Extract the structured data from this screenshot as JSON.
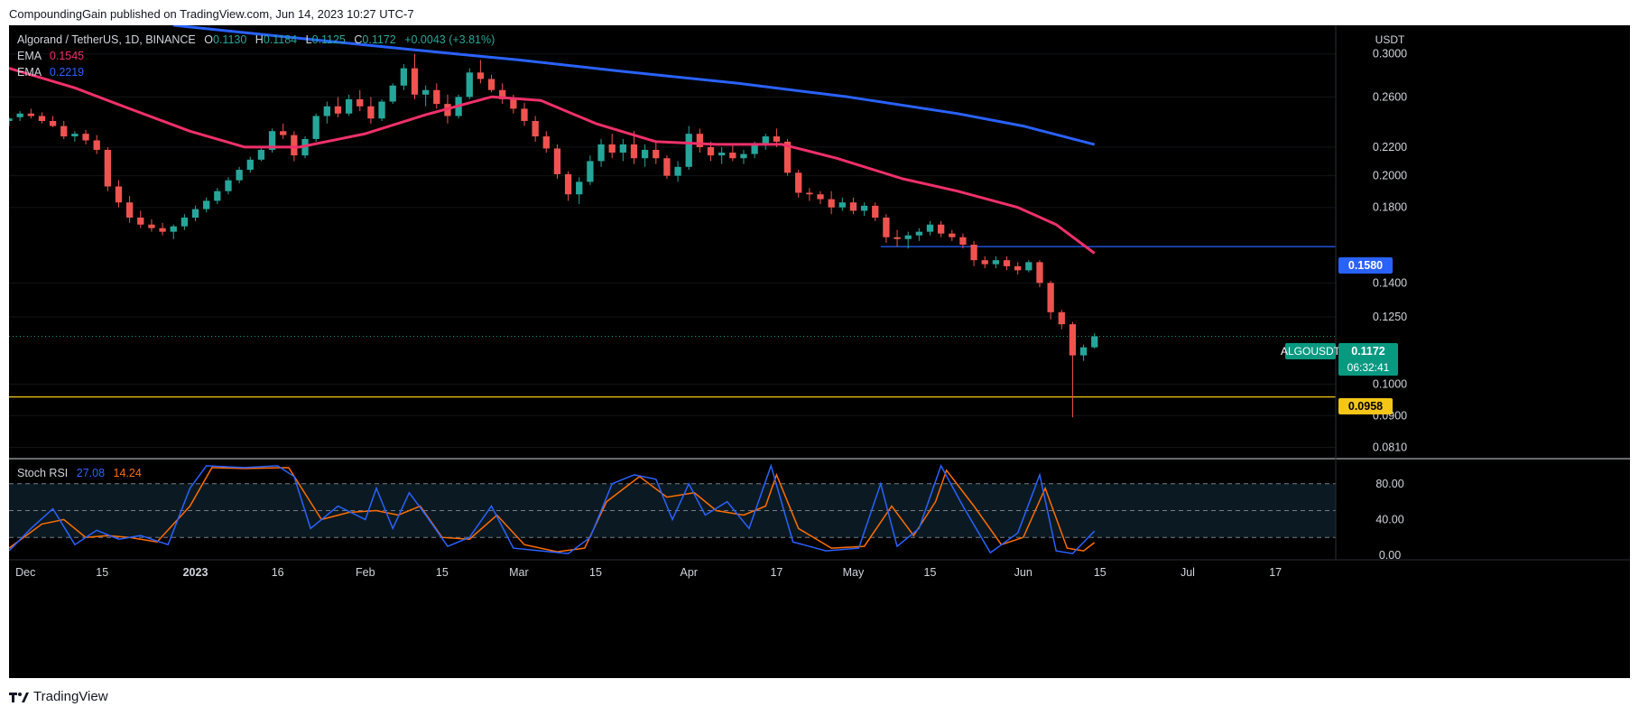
{
  "header": {
    "published_line": "CompoundingGain published on TradingView.com, Jun 14, 2023 10:27 UTC-7"
  },
  "footer": {
    "brand": "TradingView"
  },
  "symbol_bar": {
    "title": "Algorand / TetherUS, 1D, BINANCE",
    "o_label": "O",
    "o_value": "0.1130",
    "h_label": "H",
    "h_value": "0.1184",
    "l_label": "L",
    "l_value": "0.1125",
    "c_label": "C",
    "c_value": "0.1172",
    "change": "+0.0043 (+3.81%)"
  },
  "indicators": {
    "ema_fast": {
      "label": "EMA",
      "value": "0.1545",
      "color": "#f0306a"
    },
    "ema_slow": {
      "label": "EMA",
      "value": "0.2219",
      "color": "#2962ff"
    }
  },
  "price_axis": {
    "currency": "USDT",
    "ticks": [
      "0.3000",
      "0.2600",
      "0.2200",
      "0.2000",
      "0.1800",
      "0.1400",
      "0.1250",
      "0.1000",
      "0.0900",
      "0.0810"
    ]
  },
  "price_tags": {
    "symbol": "ALGOUSDT",
    "last_price": "0.1172",
    "countdown": "06:32:41",
    "resistance": "0.1580",
    "support": "0.0958"
  },
  "stoch_rsi": {
    "label": "Stoch RSI",
    "k_value": "27.08",
    "d_value": "14.24",
    "k_color": "#2962ff",
    "d_color": "#ff6d00",
    "ticks": [
      "80.00",
      "40.00",
      "0.00"
    ]
  },
  "time_axis": {
    "labels": [
      "Dec",
      "15",
      "2023",
      "16",
      "Feb",
      "15",
      "Mar",
      "15",
      "Apr",
      "17",
      "May",
      "15",
      "Jun",
      "15",
      "Jul",
      "17"
    ]
  },
  "colors": {
    "up": "#26a69a",
    "down": "#ef5350",
    "ema_fast": "#f0306a",
    "ema_slow": "#2962ff",
    "resistance_line": "#2962ff",
    "support_line": "#f5c518",
    "last_price": "#089981"
  },
  "chart_data": {
    "type": "candlestick",
    "title": "Algorand / TetherUS, 1D, BINANCE",
    "ylabel": "USDT",
    "y_scale": "log",
    "ylim": [
      0.078,
      0.33
    ],
    "x_start": "2022-11-28",
    "x_end": "2023-07-28",
    "horizontal_levels": [
      {
        "name": "resistance",
        "value": 0.158,
        "from": "2023-05-06"
      },
      {
        "name": "support",
        "value": 0.0958
      }
    ],
    "candles": [
      [
        "2022-11-28",
        0.24,
        0.243,
        0.236,
        0.242
      ],
      [
        "2022-11-30",
        0.243,
        0.248,
        0.24,
        0.246
      ],
      [
        "2022-12-02",
        0.246,
        0.25,
        0.242,
        0.244
      ],
      [
        "2022-12-04",
        0.244,
        0.247,
        0.238,
        0.24
      ],
      [
        "2022-12-06",
        0.24,
        0.244,
        0.235,
        0.236
      ],
      [
        "2022-12-08",
        0.236,
        0.24,
        0.226,
        0.228
      ],
      [
        "2022-12-10",
        0.228,
        0.232,
        0.224,
        0.23
      ],
      [
        "2022-12-12",
        0.23,
        0.233,
        0.222,
        0.225
      ],
      [
        "2022-12-14",
        0.225,
        0.229,
        0.215,
        0.218
      ],
      [
        "2022-12-16",
        0.218,
        0.22,
        0.19,
        0.193
      ],
      [
        "2022-12-18",
        0.193,
        0.197,
        0.18,
        0.183
      ],
      [
        "2022-12-20",
        0.183,
        0.187,
        0.171,
        0.174
      ],
      [
        "2022-12-22",
        0.174,
        0.178,
        0.168,
        0.17
      ],
      [
        "2022-12-24",
        0.17,
        0.173,
        0.166,
        0.168
      ],
      [
        "2022-12-26",
        0.168,
        0.171,
        0.164,
        0.166
      ],
      [
        "2022-12-28",
        0.166,
        0.17,
        0.162,
        0.169
      ],
      [
        "2022-12-30",
        0.169,
        0.176,
        0.167,
        0.174
      ],
      [
        "2023-01-01",
        0.174,
        0.181,
        0.172,
        0.179
      ],
      [
        "2023-01-03",
        0.179,
        0.186,
        0.177,
        0.184
      ],
      [
        "2023-01-05",
        0.184,
        0.192,
        0.182,
        0.19
      ],
      [
        "2023-01-07",
        0.19,
        0.199,
        0.188,
        0.197
      ],
      [
        "2023-01-09",
        0.197,
        0.206,
        0.195,
        0.204
      ],
      [
        "2023-01-11",
        0.204,
        0.213,
        0.202,
        0.211
      ],
      [
        "2023-01-13",
        0.211,
        0.22,
        0.21,
        0.218
      ],
      [
        "2023-01-15",
        0.218,
        0.234,
        0.216,
        0.232
      ],
      [
        "2023-01-17",
        0.232,
        0.238,
        0.226,
        0.229
      ],
      [
        "2023-01-19",
        0.229,
        0.232,
        0.21,
        0.214
      ],
      [
        "2023-01-21",
        0.214,
        0.228,
        0.212,
        0.226
      ],
      [
        "2023-01-23",
        0.226,
        0.246,
        0.224,
        0.244
      ],
      [
        "2023-01-25",
        0.244,
        0.256,
        0.238,
        0.252
      ],
      [
        "2023-01-27",
        0.252,
        0.26,
        0.243,
        0.246
      ],
      [
        "2023-01-29",
        0.246,
        0.262,
        0.244,
        0.258
      ],
      [
        "2023-01-31",
        0.258,
        0.266,
        0.248,
        0.252
      ],
      [
        "2023-02-02",
        0.252,
        0.26,
        0.238,
        0.242
      ],
      [
        "2023-02-04",
        0.242,
        0.258,
        0.24,
        0.256
      ],
      [
        "2023-02-06",
        0.256,
        0.272,
        0.254,
        0.27
      ],
      [
        "2023-02-08",
        0.27,
        0.29,
        0.266,
        0.286
      ],
      [
        "2023-02-10",
        0.286,
        0.3,
        0.258,
        0.262
      ],
      [
        "2023-02-12",
        0.262,
        0.27,
        0.252,
        0.266
      ],
      [
        "2023-02-14",
        0.266,
        0.272,
        0.25,
        0.254
      ],
      [
        "2023-02-16",
        0.254,
        0.262,
        0.238,
        0.244
      ],
      [
        "2023-02-18",
        0.244,
        0.262,
        0.242,
        0.26
      ],
      [
        "2023-02-20",
        0.26,
        0.286,
        0.258,
        0.282
      ],
      [
        "2023-02-22",
        0.282,
        0.294,
        0.272,
        0.276
      ],
      [
        "2023-02-24",
        0.276,
        0.28,
        0.264,
        0.266
      ],
      [
        "2023-02-26",
        0.266,
        0.272,
        0.254,
        0.258
      ],
      [
        "2023-02-28",
        0.258,
        0.262,
        0.246,
        0.25
      ],
      [
        "2023-03-02",
        0.25,
        0.255,
        0.236,
        0.24
      ],
      [
        "2023-03-04",
        0.24,
        0.244,
        0.224,
        0.228
      ],
      [
        "2023-03-06",
        0.228,
        0.232,
        0.216,
        0.219
      ],
      [
        "2023-03-08",
        0.219,
        0.222,
        0.198,
        0.201
      ],
      [
        "2023-03-10",
        0.201,
        0.203,
        0.184,
        0.188
      ],
      [
        "2023-03-12",
        0.188,
        0.199,
        0.182,
        0.196
      ],
      [
        "2023-03-14",
        0.196,
        0.214,
        0.194,
        0.21
      ],
      [
        "2023-03-16",
        0.21,
        0.226,
        0.206,
        0.222
      ],
      [
        "2023-03-18",
        0.222,
        0.23,
        0.212,
        0.216
      ],
      [
        "2023-03-20",
        0.216,
        0.226,
        0.21,
        0.222
      ],
      [
        "2023-03-22",
        0.222,
        0.232,
        0.208,
        0.212
      ],
      [
        "2023-03-24",
        0.212,
        0.222,
        0.206,
        0.218
      ],
      [
        "2023-03-26",
        0.218,
        0.224,
        0.208,
        0.212
      ],
      [
        "2023-03-28",
        0.212,
        0.214,
        0.198,
        0.2
      ],
      [
        "2023-03-30",
        0.2,
        0.21,
        0.196,
        0.206
      ],
      [
        "2023-04-01",
        0.206,
        0.236,
        0.204,
        0.23
      ],
      [
        "2023-04-03",
        0.23,
        0.234,
        0.216,
        0.22
      ],
      [
        "2023-04-05",
        0.22,
        0.224,
        0.21,
        0.214
      ],
      [
        "2023-04-07",
        0.214,
        0.22,
        0.208,
        0.216
      ],
      [
        "2023-04-09",
        0.216,
        0.222,
        0.21,
        0.212
      ],
      [
        "2023-04-11",
        0.212,
        0.218,
        0.208,
        0.215
      ],
      [
        "2023-04-13",
        0.215,
        0.224,
        0.212,
        0.222
      ],
      [
        "2023-04-15",
        0.222,
        0.23,
        0.218,
        0.228
      ],
      [
        "2023-04-17",
        0.228,
        0.234,
        0.22,
        0.224
      ],
      [
        "2023-04-19",
        0.224,
        0.226,
        0.2,
        0.202
      ],
      [
        "2023-04-21",
        0.202,
        0.204,
        0.186,
        0.189
      ],
      [
        "2023-04-23",
        0.189,
        0.192,
        0.184,
        0.188
      ],
      [
        "2023-04-25",
        0.188,
        0.19,
        0.182,
        0.185
      ],
      [
        "2023-04-27",
        0.185,
        0.19,
        0.176,
        0.18
      ],
      [
        "2023-04-29",
        0.18,
        0.186,
        0.178,
        0.183
      ],
      [
        "2023-05-01",
        0.183,
        0.186,
        0.176,
        0.178
      ],
      [
        "2023-05-03",
        0.178,
        0.183,
        0.175,
        0.181
      ],
      [
        "2023-05-05",
        0.181,
        0.183,
        0.172,
        0.174
      ],
      [
        "2023-05-07",
        0.174,
        0.176,
        0.16,
        0.163
      ],
      [
        "2023-05-09",
        0.163,
        0.167,
        0.158,
        0.162
      ],
      [
        "2023-05-11",
        0.162,
        0.166,
        0.157,
        0.164
      ],
      [
        "2023-05-13",
        0.164,
        0.168,
        0.161,
        0.166
      ],
      [
        "2023-05-15",
        0.166,
        0.172,
        0.164,
        0.17
      ],
      [
        "2023-05-17",
        0.17,
        0.172,
        0.163,
        0.165
      ],
      [
        "2023-05-19",
        0.165,
        0.167,
        0.161,
        0.163
      ],
      [
        "2023-05-21",
        0.163,
        0.165,
        0.157,
        0.159
      ],
      [
        "2023-05-23",
        0.159,
        0.161,
        0.148,
        0.151
      ],
      [
        "2023-05-25",
        0.151,
        0.153,
        0.147,
        0.149
      ],
      [
        "2023-05-27",
        0.149,
        0.153,
        0.147,
        0.151
      ],
      [
        "2023-05-29",
        0.151,
        0.153,
        0.146,
        0.148
      ],
      [
        "2023-05-31",
        0.148,
        0.15,
        0.144,
        0.146
      ],
      [
        "2023-06-02",
        0.146,
        0.151,
        0.145,
        0.15
      ],
      [
        "2023-06-04",
        0.15,
        0.151,
        0.138,
        0.14
      ],
      [
        "2023-06-06",
        0.14,
        0.141,
        0.124,
        0.127
      ],
      [
        "2023-06-08",
        0.127,
        0.128,
        0.12,
        0.122
      ],
      [
        "2023-06-10",
        0.122,
        0.123,
        0.0895,
        0.11
      ],
      [
        "2023-06-12",
        0.11,
        0.114,
        0.108,
        0.113
      ],
      [
        "2023-06-14",
        0.113,
        0.1184,
        0.1125,
        0.1172
      ]
    ],
    "ema_fast": {
      "name": "EMA",
      "last_value": 0.1545,
      "points": [
        [
          "2022-11-28",
          0.286
        ],
        [
          "2022-12-10",
          0.268
        ],
        [
          "2022-12-20",
          0.25
        ],
        [
          "2022-12-31",
          0.232
        ],
        [
          "2023-01-10",
          0.22
        ],
        [
          "2023-01-20",
          0.22
        ],
        [
          "2023-02-01",
          0.23
        ],
        [
          "2023-02-12",
          0.245
        ],
        [
          "2023-02-24",
          0.26
        ],
        [
          "2023-03-05",
          0.257
        ],
        [
          "2023-03-15",
          0.238
        ],
        [
          "2023-03-26",
          0.224
        ],
        [
          "2023-04-06",
          0.222
        ],
        [
          "2023-04-18",
          0.222
        ],
        [
          "2023-04-28",
          0.212
        ],
        [
          "2023-05-10",
          0.198
        ],
        [
          "2023-05-20",
          0.19
        ],
        [
          "2023-05-31",
          0.18
        ],
        [
          "2023-06-07",
          0.17
        ],
        [
          "2023-06-14",
          0.1545
        ]
      ]
    },
    "ema_slow": {
      "name": "EMA",
      "last_value": 0.2219,
      "points": [
        [
          "2022-12-28",
          0.33
        ],
        [
          "2023-01-20",
          0.316
        ],
        [
          "2023-02-10",
          0.304
        ],
        [
          "2023-03-01",
          0.294
        ],
        [
          "2023-03-20",
          0.283
        ],
        [
          "2023-04-10",
          0.272
        ],
        [
          "2023-04-30",
          0.26
        ],
        [
          "2023-05-20",
          0.246
        ],
        [
          "2023-06-01",
          0.236
        ],
        [
          "2023-06-14",
          0.2219
        ]
      ]
    },
    "stoch_rsi": {
      "ylim": [
        -5,
        106
      ],
      "bands": {
        "upper": 80,
        "middle": 50,
        "lower": 20
      },
      "k": [
        [
          "2022-11-28",
          5
        ],
        [
          "2022-12-02",
          30
        ],
        [
          "2022-12-06",
          52
        ],
        [
          "2022-12-10",
          12
        ],
        [
          "2022-12-14",
          28
        ],
        [
          "2022-12-18",
          18
        ],
        [
          "2022-12-22",
          22
        ],
        [
          "2022-12-27",
          12
        ],
        [
          "2022-12-31",
          75
        ],
        [
          "2023-01-03",
          100
        ],
        [
          "2023-01-10",
          98
        ],
        [
          "2023-01-16",
          100
        ],
        [
          "2023-01-19",
          88
        ],
        [
          "2023-01-22",
          30
        ],
        [
          "2023-01-27",
          55
        ],
        [
          "2023-02-01",
          40
        ],
        [
          "2023-02-03",
          75
        ],
        [
          "2023-02-06",
          30
        ],
        [
          "2023-02-09",
          70
        ],
        [
          "2023-02-12",
          45
        ],
        [
          "2023-02-16",
          10
        ],
        [
          "2023-02-20",
          20
        ],
        [
          "2023-02-24",
          55
        ],
        [
          "2023-02-28",
          8
        ],
        [
          "2023-03-05",
          5
        ],
        [
          "2023-03-10",
          2
        ],
        [
          "2023-03-14",
          20
        ],
        [
          "2023-03-18",
          80
        ],
        [
          "2023-03-22",
          90
        ],
        [
          "2023-03-26",
          85
        ],
        [
          "2023-03-29",
          40
        ],
        [
          "2023-04-01",
          80
        ],
        [
          "2023-04-04",
          45
        ],
        [
          "2023-04-08",
          60
        ],
        [
          "2023-04-12",
          30
        ],
        [
          "2023-04-16",
          100
        ],
        [
          "2023-04-20",
          15
        ],
        [
          "2023-04-26",
          5
        ],
        [
          "2023-05-02",
          8
        ],
        [
          "2023-05-06",
          80
        ],
        [
          "2023-05-09",
          10
        ],
        [
          "2023-05-13",
          30
        ],
        [
          "2023-05-17",
          100
        ],
        [
          "2023-05-21",
          55
        ],
        [
          "2023-05-26",
          3
        ],
        [
          "2023-05-31",
          25
        ],
        [
          "2023-06-04",
          90
        ],
        [
          "2023-06-07",
          5
        ],
        [
          "2023-06-10",
          2
        ],
        [
          "2023-06-14",
          27.08
        ]
      ],
      "d": [
        [
          "2022-11-28",
          8
        ],
        [
          "2022-12-04",
          35
        ],
        [
          "2022-12-08",
          40
        ],
        [
          "2022-12-12",
          20
        ],
        [
          "2022-12-16",
          22
        ],
        [
          "2022-12-20",
          20
        ],
        [
          "2022-12-25",
          15
        ],
        [
          "2022-12-31",
          55
        ],
        [
          "2023-01-04",
          98
        ],
        [
          "2023-01-10",
          97
        ],
        [
          "2023-01-18",
          98
        ],
        [
          "2023-01-24",
          40
        ],
        [
          "2023-01-29",
          48
        ],
        [
          "2023-02-03",
          50
        ],
        [
          "2023-02-07",
          45
        ],
        [
          "2023-02-11",
          55
        ],
        [
          "2023-02-15",
          20
        ],
        [
          "2023-02-20",
          18
        ],
        [
          "2023-02-25",
          45
        ],
        [
          "2023-03-02",
          12
        ],
        [
          "2023-03-08",
          4
        ],
        [
          "2023-03-13",
          8
        ],
        [
          "2023-03-17",
          60
        ],
        [
          "2023-03-23",
          88
        ],
        [
          "2023-03-28",
          65
        ],
        [
          "2023-04-02",
          70
        ],
        [
          "2023-04-06",
          50
        ],
        [
          "2023-04-11",
          45
        ],
        [
          "2023-04-15",
          55
        ],
        [
          "2023-04-17",
          90
        ],
        [
          "2023-04-21",
          30
        ],
        [
          "2023-04-27",
          8
        ],
        [
          "2023-05-03",
          10
        ],
        [
          "2023-05-08",
          55
        ],
        [
          "2023-05-12",
          22
        ],
        [
          "2023-05-16",
          60
        ],
        [
          "2023-05-18",
          95
        ],
        [
          "2023-05-23",
          55
        ],
        [
          "2023-05-28",
          12
        ],
        [
          "2023-06-01",
          20
        ],
        [
          "2023-06-05",
          75
        ],
        [
          "2023-06-09",
          8
        ],
        [
          "2023-06-12",
          5
        ],
        [
          "2023-06-14",
          14.24
        ]
      ]
    }
  }
}
